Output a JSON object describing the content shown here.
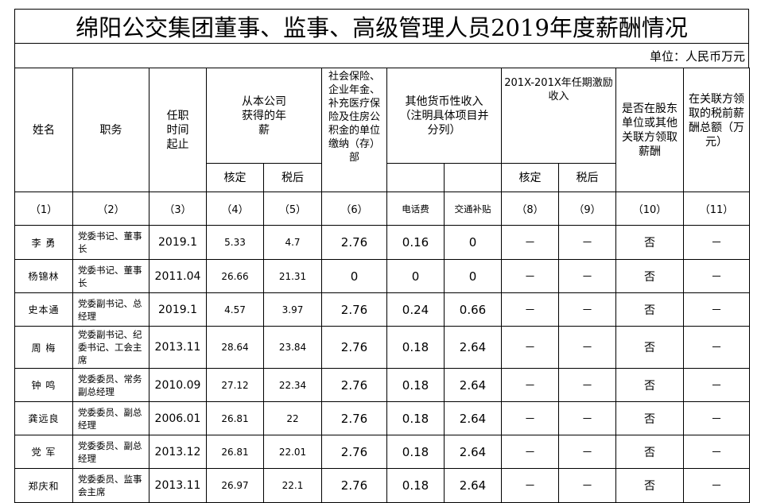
{
  "title": "绵阳公交集团董事、监事、高级管理人员2019年度薪酬情况",
  "unit": "单位：人民币万元",
  "headers": {
    "name": "姓名",
    "position": "职务",
    "term_start": "任职时间起止",
    "annual_pay": "从本公司获得的年薪",
    "approved": "核定",
    "after_tax": "税后",
    "social_insurance": "社会保险、企业年金、补充医疗保险及住房公积金的单位缴纳（存）部",
    "other_income": "其他货币性收入（注明具体项目并分列）",
    "phone_fee": "电话费",
    "transport": "交通补贴",
    "incentive": "201X-201X年任期激励收入",
    "incentive_approved": "核定",
    "incentive_after_tax": "税后",
    "affiliate": "是否在股东单位或其他关联方领取薪酬",
    "affiliate_pay": "在关联方领取的税前薪酬总额（万元）"
  },
  "index_row": [
    "（1）",
    "（2）",
    "（3）",
    "（4）",
    "（5）",
    "（6）",
    "电话费",
    "交通补贴",
    "（8）",
    "（9）",
    "（10）",
    "（11）"
  ],
  "rows": [
    {
      "name": "李 勇",
      "position": "党委书记、董事长",
      "term": "2019.1",
      "approved": "5.33",
      "after_tax": "4.7",
      "social": "2.76",
      "phone": "0.16",
      "transport": "0",
      "inc_approved": "－",
      "inc_after_tax": "－",
      "affiliate": "否",
      "affiliate_pay": "－"
    },
    {
      "name": "杨锦林",
      "position": "党委书记、董事长",
      "term": "2011.04",
      "approved": "26.66",
      "after_tax": "21.31",
      "social": "0",
      "phone": "0",
      "transport": "0",
      "inc_approved": "－",
      "inc_after_tax": "－",
      "affiliate": "否",
      "affiliate_pay": "－"
    },
    {
      "name": "史本通",
      "position": "党委副书记、总经理",
      "term": "2019.1",
      "approved": "4.57",
      "after_tax": "3.97",
      "social": "2.76",
      "phone": "0.24",
      "transport": "0.66",
      "inc_approved": "－",
      "inc_after_tax": "－",
      "affiliate": "否",
      "affiliate_pay": "－"
    },
    {
      "name": "周 梅",
      "position": "党委副书记、纪委书记、工会主席",
      "term": "2013.11",
      "approved": "28.64",
      "after_tax": "23.84",
      "social": "2.76",
      "phone": "0.18",
      "transport": "2.64",
      "inc_approved": "－",
      "inc_after_tax": "－",
      "affiliate": "否",
      "affiliate_pay": "－"
    },
    {
      "name": "钟 鸣",
      "position": "党委委员、常务副总经理",
      "term": "2010.09",
      "approved": "27.12",
      "after_tax": "22.34",
      "social": "2.76",
      "phone": "0.18",
      "transport": "2.64",
      "inc_approved": "－",
      "inc_after_tax": "－",
      "affiliate": "否",
      "affiliate_pay": "－"
    },
    {
      "name": "龚远良",
      "position": "党委委员、副总经理",
      "term": "2006.01",
      "approved": "26.81",
      "after_tax": "22",
      "social": "2.76",
      "phone": "0.18",
      "transport": "2.64",
      "inc_approved": "－",
      "inc_after_tax": "－",
      "affiliate": "否",
      "affiliate_pay": "－"
    },
    {
      "name": "党 军",
      "position": "党委委员、副总经理",
      "term": "2013.12",
      "approved": "26.81",
      "after_tax": "22.01",
      "social": "2.76",
      "phone": "0.18",
      "transport": "2.64",
      "inc_approved": "－",
      "inc_after_tax": "－",
      "affiliate": "否",
      "affiliate_pay": "－"
    },
    {
      "name": "郑庆和",
      "position": "党委委员、监事会主席",
      "term": "2013.11",
      "approved": "26.97",
      "after_tax": "22.1",
      "social": "2.76",
      "phone": "0.18",
      "transport": "2.64",
      "inc_approved": "－",
      "inc_after_tax": "－",
      "affiliate": "否",
      "affiliate_pay": "－"
    }
  ]
}
